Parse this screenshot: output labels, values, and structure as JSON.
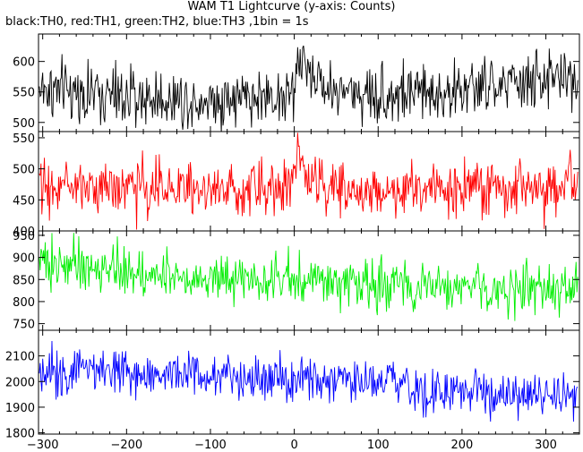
{
  "header": {
    "title": "WAM T1 Lightcurve (y-axis: Counts)",
    "subtitle": "black:TH0, red:TH1, green:TH2, blue:TH3 ,1bin = 1s"
  },
  "chart_data": {
    "type": "line",
    "x_range": [
      -305,
      340
    ],
    "x_ticks": [
      -300,
      -200,
      -100,
      0,
      100,
      200,
      300
    ],
    "bin_seconds": 1,
    "panels": [
      {
        "series": "TH0",
        "color": "#000000",
        "ylim": [
          485,
          645
        ],
        "y_ticks": [
          500,
          550,
          600
        ],
        "profile_x": [
          -300,
          -250,
          -200,
          -100,
          0,
          5,
          15,
          40,
          100,
          200,
          300,
          335
        ],
        "profile_y": [
          555,
          548,
          540,
          538,
          545,
          605,
          590,
          555,
          545,
          552,
          570,
          575
        ],
        "noise_sd": 24
      },
      {
        "series": "TH1",
        "color": "#ff0000",
        "ylim": [
          400,
          560
        ],
        "y_ticks": [
          400,
          450,
          500,
          550
        ],
        "profile_x": [
          -300,
          -200,
          -100,
          -10,
          0,
          5,
          15,
          40,
          100,
          200,
          300,
          335
        ],
        "profile_y": [
          472,
          470,
          468,
          470,
          490,
          525,
          500,
          470,
          465,
          468,
          470,
          472
        ],
        "noise_sd": 21
      },
      {
        "series": "TH2",
        "color": "#00ee00",
        "ylim": [
          735,
          960
        ],
        "y_ticks": [
          750,
          800,
          850,
          900,
          950
        ],
        "profile_x": [
          -300,
          -250,
          -150,
          0,
          100,
          200,
          300,
          335
        ],
        "profile_y": [
          890,
          875,
          862,
          850,
          840,
          830,
          825,
          828
        ],
        "noise_sd": 27
      },
      {
        "series": "TH3",
        "color": "#0000ff",
        "ylim": [
          1795,
          2200
        ],
        "y_ticks": [
          1800,
          1900,
          2000,
          2100
        ],
        "profile_x": [
          -300,
          -250,
          -150,
          0,
          100,
          200,
          300,
          335
        ],
        "profile_y": [
          2045,
          2055,
          2030,
          2000,
          1985,
          1960,
          1940,
          1935
        ],
        "noise_sd": 45
      }
    ]
  }
}
